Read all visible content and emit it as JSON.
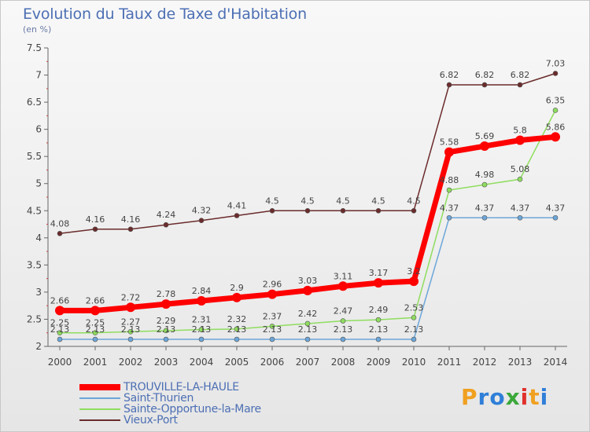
{
  "header": {
    "title": "Evolution du Taux de Taxe d'Habitation",
    "subtitle": "(en %)"
  },
  "logo": {
    "letters": [
      "P",
      "r",
      "o",
      "x",
      "i",
      "t",
      "i"
    ],
    "colors": [
      "#f0a020",
      "#2f7fd8",
      "#2f7fd8",
      "#3aa83a",
      "#e0302c",
      "#f0a020",
      "#2f7fd8"
    ]
  },
  "chart_data": {
    "type": "line",
    "title": "Evolution du Taux de Taxe d'Habitation",
    "subtitle": "(en %)",
    "x": [
      "2000",
      "2001",
      "2002",
      "2003",
      "2004",
      "2005",
      "2006",
      "2007",
      "2008",
      "2009",
      "2010",
      "2011",
      "2012",
      "2013",
      "2014"
    ],
    "ylim": [
      2,
      7.5
    ],
    "yticks": [
      "2",
      "2.5",
      "3",
      "3.5",
      "4",
      "4.5",
      "5",
      "5.5",
      "6",
      "6.5",
      "7",
      "7.5"
    ],
    "grid": false,
    "legend_position": "bottom-left",
    "series": [
      {
        "name": "TROUVILLE-LA-HAULE",
        "color": "#ff0000",
        "emphasis": "thick",
        "values": [
          2.66,
          2.66,
          2.72,
          2.78,
          2.84,
          2.9,
          2.96,
          3.03,
          3.11,
          3.17,
          3.2,
          5.58,
          5.69,
          5.8,
          5.86
        ],
        "labels": [
          "2.66",
          "2.66",
          "2.72",
          "2.78",
          "2.84",
          "2.9",
          "2.96",
          "3.03",
          "3.11",
          "3.17",
          "3.2",
          "5.58",
          "5.69",
          "5.8",
          "5.86"
        ]
      },
      {
        "name": "Saint-Thurien",
        "color": "#6ca6d9",
        "values": [
          2.13,
          2.13,
          2.13,
          2.13,
          2.13,
          2.13,
          2.13,
          2.13,
          2.13,
          2.13,
          2.13,
          4.37,
          4.37,
          4.37,
          4.37
        ],
        "labels": [
          "2.13",
          "2.13",
          "2.13",
          "2.13",
          "2.13",
          "2.13",
          "2.13",
          "2.13",
          "2.13",
          "2.13",
          "2.13",
          "4.37",
          "4.37",
          "4.37",
          "4.37"
        ]
      },
      {
        "name": "Sainte-Opportune-la-Mare",
        "color": "#8fdd5f",
        "values": [
          2.25,
          2.25,
          2.27,
          2.29,
          2.31,
          2.32,
          2.37,
          2.42,
          2.47,
          2.49,
          2.53,
          4.88,
          4.98,
          5.08,
          6.35
        ],
        "labels": [
          "2.25",
          "2.25",
          "2.27",
          "2.29",
          "2.31",
          "2.32",
          "2.37",
          "2.42",
          "2.47",
          "2.49",
          "2.53",
          "4.88",
          "4.98",
          "5.08",
          "6.35"
        ]
      },
      {
        "name": "Vieux-Port",
        "color": "#6b2b2b",
        "values": [
          4.08,
          4.16,
          4.16,
          4.24,
          4.32,
          4.41,
          4.5,
          4.5,
          4.5,
          4.5,
          4.5,
          6.82,
          6.82,
          6.82,
          7.03
        ],
        "labels": [
          "4.08",
          "4.16",
          "4.16",
          "4.24",
          "4.32",
          "4.41",
          "4.5",
          "4.5",
          "4.5",
          "4.5",
          "4.5",
          "6.82",
          "6.82",
          "6.82",
          "7.03"
        ]
      }
    ]
  }
}
